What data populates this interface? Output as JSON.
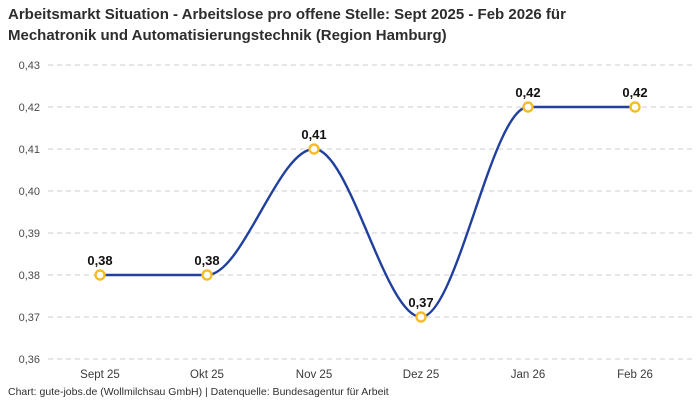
{
  "title": {
    "line1": "Arbeitsmarkt Situation - Arbeitslose pro offene Stelle: Sept 2025 - Feb 2026 für",
    "line2": "Mechatronik und Automatisierungstechnik (Region Hamburg)"
  },
  "footer": {
    "text": "Chart: gute-jobs.de (Wollmilchsau GmbH) | Datenquelle: Bundesagentur für Arbeit"
  },
  "chart_data": {
    "type": "line",
    "title": "Arbeitsmarkt Situation - Arbeitslose pro offene Stelle: Sept 2025 - Feb 2026 für Mechatronik und Automatisierungstechnik (Region Hamburg)",
    "categories": [
      "Sept 25",
      "Okt 25",
      "Nov 25",
      "Dez 25",
      "Jan 26",
      "Feb 26"
    ],
    "values": [
      0.38,
      0.38,
      0.41,
      0.37,
      0.42,
      0.42
    ],
    "value_labels": [
      "0,38",
      "0,38",
      "0,41",
      "0,37",
      "0,42",
      "0,42"
    ],
    "xlabel": "",
    "ylabel": "",
    "ylim": [
      0.36,
      0.43
    ],
    "ytick_step": 0.01,
    "ytick_labels": [
      "0,43",
      "0,42",
      "0,41",
      "0,40",
      "0,39",
      "0,38",
      "0,37",
      "0,36"
    ],
    "grid": "horizontal-dashed",
    "legend": "none",
    "interpolation": "monotone",
    "line_color": "#21409e",
    "marker_color": "#f7bc25",
    "marker_fill": "#ffffff",
    "grid_color": "#cccccc",
    "tick_label_color": "#4a4a4a",
    "xtick_label_color": "#3a3a3a",
    "data_label_color": "#111111"
  }
}
